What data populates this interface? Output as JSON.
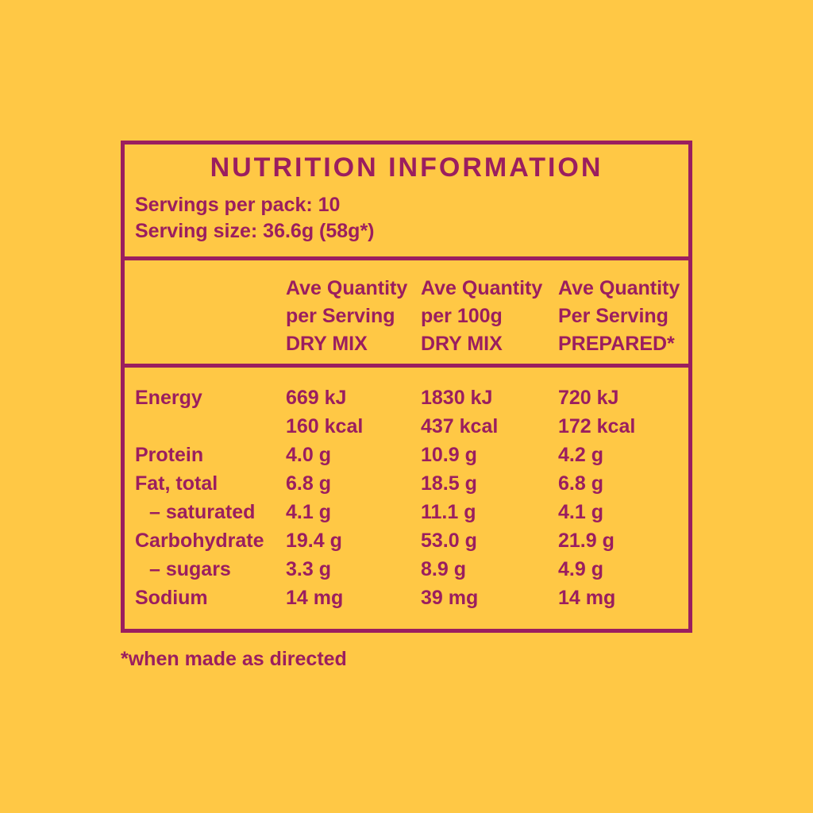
{
  "colors": {
    "background": "#FFC845",
    "ink": "#9B1E5F"
  },
  "panel": {
    "title": "NUTRITION INFORMATION",
    "servings_per_pack": "Servings per pack: 10",
    "serving_size": "Serving size: 36.6g (58g*)",
    "columns": [
      {
        "lines": [
          "Ave Quantity",
          "per Serving",
          "DRY MIX"
        ]
      },
      {
        "lines": [
          "Ave Quantity",
          "per 100g",
          "DRY MIX"
        ]
      },
      {
        "lines": [
          "Ave Quantity",
          "Per Serving",
          "PREPARED*"
        ]
      }
    ],
    "rows": [
      {
        "label": "Energy",
        "values": [
          "669 kJ",
          "1830 kJ",
          "720 kJ"
        ]
      },
      {
        "label": "",
        "values": [
          "160 kcal",
          "437 kcal",
          "172 kcal"
        ]
      },
      {
        "label": "Protein",
        "values": [
          "4.0 g",
          "10.9 g",
          "4.2 g"
        ]
      },
      {
        "label": "Fat, total",
        "values": [
          "6.8 g",
          "18.5 g",
          "6.8 g"
        ]
      },
      {
        "label": "– saturated",
        "values": [
          "4.1 g",
          "11.1 g",
          "4.1 g"
        ]
      },
      {
        "label": "Carbohydrate",
        "values": [
          "19.4 g",
          "53.0 g",
          "21.9 g"
        ]
      },
      {
        "label": "– sugars",
        "values": [
          "3.3 g",
          "8.9 g",
          "4.9 g"
        ]
      },
      {
        "label": "Sodium",
        "values": [
          "14 mg",
          "39 mg",
          "14 mg"
        ]
      }
    ],
    "footnote": "*when made as directed"
  }
}
